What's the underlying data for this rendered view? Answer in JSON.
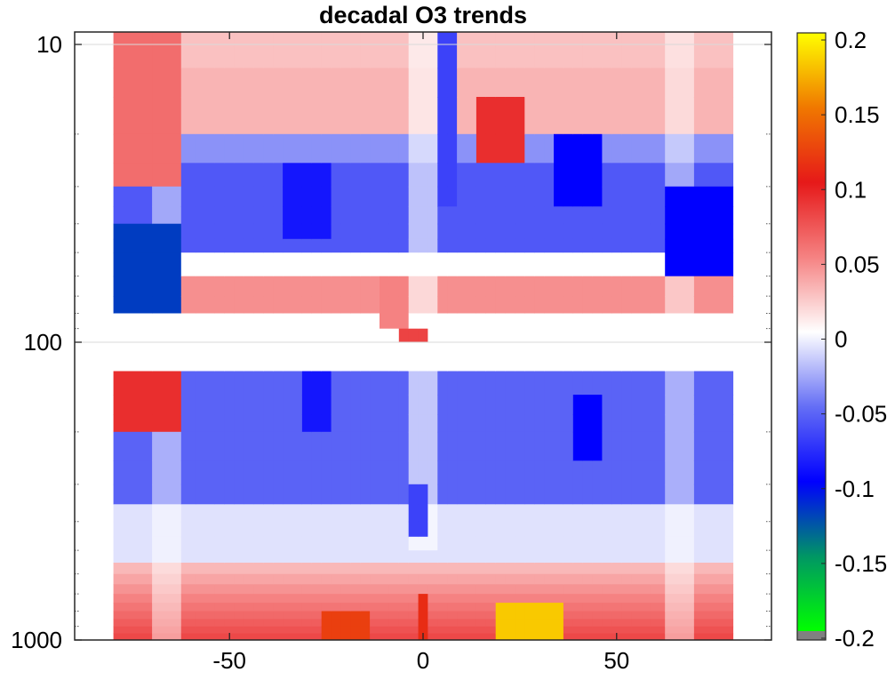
{
  "chart_data": {
    "type": "heatmap",
    "title": "decadal O3 trends",
    "xlabel": "",
    "ylabel": "",
    "xlim": [
      -90,
      90
    ],
    "ylim": [
      1000,
      10
    ],
    "y_scale": "log",
    "x_ticks": [
      -50,
      0,
      50
    ],
    "x_tick_labels": [
      "-50",
      "0",
      "50"
    ],
    "y_ticks": [
      10,
      100,
      1000
    ],
    "y_tick_labels": [
      "10",
      "100",
      "1000"
    ],
    "grid": true,
    "colorbar": {
      "range": [
        -0.2,
        0.2
      ],
      "ticks": [
        0.2,
        0.15,
        0.1,
        0.05,
        0,
        -0.05,
        -0.1,
        -0.15,
        -0.2
      ],
      "tick_labels": [
        "0.2",
        "0.15",
        "0.1",
        "0.05",
        "0",
        "-0.05",
        "-0.1",
        "-0.15",
        "-0.2"
      ],
      "colormap": "white-centered diverging: green-teal-blue to white to red-orange-yellow",
      "below_range_color": "#808080"
    },
    "x_centers": [
      -75,
      -65,
      -60,
      -57.5,
      -55,
      -52.5,
      -50,
      -47.5,
      -45,
      -42.5,
      -40,
      -37.5,
      -35,
      -32.5,
      -30,
      -27.5,
      -25,
      -22.5,
      -20,
      -17.5,
      -15,
      -12.5,
      -10,
      -7.5,
      -5,
      -2.5,
      0,
      2.5,
      5,
      7.5,
      10,
      12.5,
      15,
      17.5,
      20,
      22.5,
      25,
      27.5,
      30,
      32.5,
      35,
      37.5,
      40,
      42.5,
      45,
      47.5,
      50,
      52.5,
      55,
      57.5,
      60,
      65,
      75
    ],
    "y_levels": [
      10,
      12,
      15,
      20,
      25,
      30,
      35,
      40,
      45,
      50,
      60,
      70,
      80,
      90,
      100,
      125,
      150,
      175,
      200,
      250,
      300,
      350,
      400,
      450,
      500,
      550,
      600,
      650,
      700,
      750,
      800,
      850,
      900,
      950,
      1000
    ],
    "regions": [
      {
        "x": [
          -80,
          -65
        ],
        "p": [
          10,
          30
        ],
        "value": 0.06
      },
      {
        "x": [
          -80,
          -65
        ],
        "p": [
          40,
          80
        ],
        "value": -0.12
      },
      {
        "x": [
          -80,
          -65
        ],
        "p": [
          120,
          200
        ],
        "value": 0.09
      },
      {
        "x": [
          -35,
          -25
        ],
        "p": [
          25,
          45
        ],
        "value": -0.09
      },
      {
        "x": [
          -30,
          -25
        ],
        "p": [
          130,
          200
        ],
        "value": -0.09
      },
      {
        "x": [
          -10,
          -5
        ],
        "p": [
          60,
          90
        ],
        "value": 0.05
      },
      {
        "x": [
          -5,
          0
        ],
        "p": [
          90,
          110
        ],
        "value": 0.08
      },
      {
        "x": [
          -3,
          1
        ],
        "p": [
          300,
          450
        ],
        "value": -0.07
      },
      {
        "x": [
          5,
          8
        ],
        "p": [
          10,
          35
        ],
        "value": -0.07
      },
      {
        "x": [
          15,
          25
        ],
        "p": [
          15,
          25
        ],
        "value": 0.09
      },
      {
        "x": [
          35,
          45
        ],
        "p": [
          20,
          35
        ],
        "value": -0.1
      },
      {
        "x": [
          40,
          45
        ],
        "p": [
          150,
          250
        ],
        "value": -0.1
      },
      {
        "x": [
          65,
          80
        ],
        "p": [
          30,
          60
        ],
        "value": -0.1
      },
      {
        "x": [
          -25,
          -15
        ],
        "p": [
          800,
          1000
        ],
        "value": 0.12
      },
      {
        "x": [
          20,
          35
        ],
        "p": [
          750,
          1000
        ],
        "value": 0.18
      },
      {
        "x": [
          -2,
          2
        ],
        "p": [
          700,
          1000
        ],
        "value": 0.11
      }
    ]
  }
}
